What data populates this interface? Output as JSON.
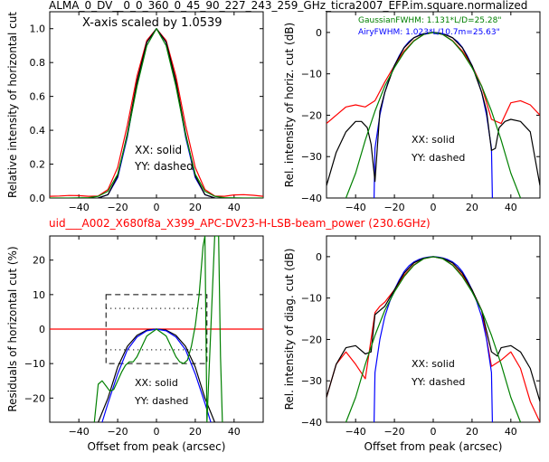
{
  "figure": {
    "title": "ALMA_0_DV__0_0_360_0_45_90_227_243_259_GHz_ticra2007_EFP.im.square.normalized",
    "subtitle": "uid___A002_X680f8a_X399_APC-DV23-H-LSB-beam_power (230.6GHz)",
    "title_color": "#000000",
    "subtitle_color": "#ff0000"
  },
  "chart_data": [
    {
      "type": "line",
      "panel": "top-left",
      "xlabel": "",
      "ylabel": "Relative intensity of horizontal cut",
      "xlim": [
        -55,
        55
      ],
      "ylim": [
        0,
        1.1
      ],
      "xticks": [
        -40,
        -20,
        0,
        20,
        40
      ],
      "xtick_labels": [
        "−40",
        "−20",
        "0",
        "20",
        "40"
      ],
      "yticks": [
        0.0,
        0.2,
        0.4,
        0.6,
        0.8,
        1.0
      ],
      "ytick_labels": [
        "0.0",
        "0.2",
        "0.4",
        "0.6",
        "0.8",
        "1.0"
      ],
      "annotation": "X-axis scaled by 1.0539",
      "legend": [
        "XX: solid",
        "YY: dashed"
      ],
      "series": [
        {
          "color": "#ff0000",
          "x": [
            -55,
            -50,
            -45,
            -40,
            -35,
            -30,
            -25,
            -20,
            -15,
            -10,
            -5,
            0,
            5,
            10,
            15,
            20,
            25,
            30,
            35,
            40,
            45,
            50,
            55
          ],
          "y": [
            0.01,
            0.012,
            0.015,
            0.014,
            0.01,
            0.012,
            0.05,
            0.18,
            0.43,
            0.72,
            0.93,
            1.0,
            0.93,
            0.72,
            0.43,
            0.18,
            0.05,
            0.012,
            0.01,
            0.018,
            0.02,
            0.016,
            0.01
          ]
        },
        {
          "color": "#0000ff",
          "x": [
            -30,
            -25,
            -20,
            -15,
            -10,
            -5,
            0,
            5,
            10,
            15,
            20,
            25,
            30
          ],
          "y": [
            0.0,
            0.02,
            0.12,
            0.36,
            0.68,
            0.92,
            1.0,
            0.92,
            0.68,
            0.36,
            0.12,
            0.02,
            0.0
          ]
        },
        {
          "color": "#000000",
          "x": [
            -30,
            -25,
            -20,
            -15,
            -10,
            -5,
            0,
            5,
            10,
            15,
            20,
            25,
            30
          ],
          "y": [
            0.0,
            0.02,
            0.13,
            0.38,
            0.69,
            0.92,
            1.0,
            0.92,
            0.69,
            0.38,
            0.13,
            0.02,
            0.0
          ]
        },
        {
          "color": "#008000",
          "x": [
            -55,
            -45,
            -35,
            -30,
            -25,
            -20,
            -15,
            -10,
            -5,
            0,
            5,
            10,
            15,
            20,
            25,
            30,
            35,
            45,
            55
          ],
          "y": [
            0.0,
            0.0,
            0.002,
            0.01,
            0.04,
            0.14,
            0.37,
            0.66,
            0.9,
            1.0,
            0.9,
            0.66,
            0.37,
            0.14,
            0.04,
            0.01,
            0.002,
            0.0,
            0.0
          ]
        }
      ]
    },
    {
      "type": "line",
      "panel": "top-right",
      "xlabel": "",
      "ylabel": "Rel. intensity of horiz. cut (dB)",
      "xlim": [
        -55,
        55
      ],
      "ylim": [
        -40,
        5
      ],
      "xticks": [
        -40,
        -20,
        0,
        20,
        40
      ],
      "xtick_labels": [
        "−40",
        "−20",
        "0",
        "20",
        "40"
      ],
      "yticks": [
        0,
        -10,
        -20,
        -30,
        -40
      ],
      "ytick_labels": [
        "0",
        "−10",
        "−20",
        "−30",
        "−40"
      ],
      "legend": [
        "XX: solid",
        "YY: dashed"
      ],
      "fwhm_labels": [
        {
          "text": "GaussianFWHM: 1.131*L/D=25.28\"",
          "color": "#008000"
        },
        {
          "text": "AiryFWHM: 1.023*L/10.7m=25.63\"",
          "color": "#0000ff"
        }
      ],
      "series": [
        {
          "color": "#ff0000",
          "x": [
            -55,
            -50,
            -45,
            -40,
            -35,
            -30,
            -25,
            -20,
            -15,
            -10,
            -5,
            0,
            5,
            10,
            15,
            20,
            25,
            30,
            35,
            40,
            45,
            50,
            55
          ],
          "y": [
            -22,
            -20,
            -18,
            -17.5,
            -18,
            -16.5,
            -12,
            -8,
            -4.5,
            -2,
            -0.5,
            0,
            -0.5,
            -2,
            -4.5,
            -8,
            -13,
            -21,
            -22,
            -17,
            -16.5,
            -17.5,
            -20
          ]
        },
        {
          "color": "#0000ff",
          "x": [
            -30.5,
            -30,
            -27.5,
            -25,
            -22.5,
            -20,
            -17.5,
            -15,
            -12.5,
            -10,
            -7.5,
            -5,
            -2.5,
            0,
            2.5,
            5,
            7.5,
            10,
            12.5,
            15,
            17.5,
            20,
            22.5,
            25,
            27.5,
            30,
            30.5
          ],
          "y": [
            -40,
            -28,
            -20,
            -14.5,
            -11,
            -8,
            -5.6,
            -3.6,
            -2.2,
            -1.3,
            -0.7,
            -0.3,
            -0.1,
            0,
            -0.1,
            -0.3,
            -0.7,
            -1.3,
            -2.2,
            -3.6,
            -5.6,
            -8,
            -11,
            -14.5,
            -20,
            -28,
            -40
          ]
        },
        {
          "color": "#000000",
          "x": [
            -55,
            -50,
            -45,
            -40,
            -37,
            -34,
            -32,
            -30,
            -27.5,
            -25,
            -20,
            -15,
            -10,
            -5,
            0,
            5,
            10,
            15,
            20,
            25,
            27.5,
            30,
            32,
            34,
            37,
            40,
            45,
            50,
            55
          ],
          "y": [
            -37,
            -29,
            -24,
            -21.5,
            -21.5,
            -23,
            -27,
            -36,
            -19,
            -14.5,
            -8,
            -3.7,
            -1.3,
            -0.3,
            0,
            -0.3,
            -1.3,
            -3.7,
            -8,
            -14.5,
            -19,
            -28.5,
            -28,
            -23,
            -21.5,
            -21,
            -21.5,
            -24,
            -37
          ]
        },
        {
          "color": "#008000",
          "x": [
            -45,
            -40,
            -35,
            -30,
            -25,
            -20,
            -15,
            -10,
            -5,
            0,
            5,
            10,
            15,
            20,
            25,
            30,
            35,
            40,
            45
          ],
          "y": [
            -40,
            -34,
            -26,
            -19,
            -13,
            -8.5,
            -4.8,
            -2.1,
            -0.5,
            0,
            -0.5,
            -2.1,
            -4.8,
            -8.5,
            -13,
            -19,
            -26,
            -34,
            -40
          ]
        }
      ]
    },
    {
      "type": "line",
      "panel": "bottom-left",
      "xlabel": "Offset from peak (arcsec)",
      "ylabel": "Residuals of horizontal cut (%)",
      "xlim": [
        -55,
        55
      ],
      "ylim": [
        -27,
        27
      ],
      "xticks": [
        -40,
        -20,
        0,
        20,
        40
      ],
      "xtick_labels": [
        "−40",
        "−20",
        "0",
        "20",
        "40"
      ],
      "yticks": [
        20,
        10,
        0,
        -10,
        -20
      ],
      "ytick_labels": [
        "20",
        "10",
        "0",
        "−10",
        "−20"
      ],
      "legend": [
        "XX: solid",
        "YY: dashed"
      ],
      "dashed_box": {
        "x": [
          -26,
          26
        ],
        "y": [
          -10,
          10
        ]
      },
      "dotted_box": {
        "x": [
          -26,
          26
        ],
        "y": [
          -6,
          6
        ]
      },
      "series": [
        {
          "color": "#ff0000",
          "x": [
            -55,
            55
          ],
          "y": [
            0,
            0
          ]
        },
        {
          "color": "#000000",
          "x": [
            -30,
            -25,
            -20,
            -15,
            -10,
            -5,
            0,
            5,
            10,
            15,
            20,
            25,
            30
          ],
          "y": [
            -27,
            -20,
            -11,
            -5,
            -1.8,
            -0.3,
            0,
            -0.3,
            -1.8,
            -5,
            -11,
            -20,
            -27
          ]
        },
        {
          "color": "#0000ff",
          "x": [
            -28,
            -25,
            -20,
            -15,
            -10,
            -5,
            0,
            5,
            10,
            15,
            20,
            25,
            28
          ],
          "y": [
            -27,
            -21.5,
            -13,
            -6,
            -2.3,
            -0.5,
            0,
            -0.5,
            -2.3,
            -6,
            -13,
            -21.5,
            -27
          ]
        },
        {
          "color": "#008000",
          "x": [
            -32,
            -30,
            -28,
            -26,
            -24,
            -22,
            -20,
            -18,
            -16,
            -14,
            -12,
            -10,
            -5,
            0,
            5,
            10,
            12,
            14,
            16,
            18,
            20,
            22,
            24,
            25,
            26,
            30,
            32,
            33,
            34
          ],
          "y": [
            -27,
            -16,
            -15,
            -16.5,
            -18,
            -17.5,
            -15,
            -12.5,
            -10.5,
            -9.5,
            -9.5,
            -8,
            -2,
            0,
            -2,
            -8,
            -9.5,
            -10,
            -9,
            -5,
            1,
            10,
            24,
            27,
            -27,
            27,
            27,
            -8,
            -27
          ]
        }
      ]
    },
    {
      "type": "line",
      "panel": "bottom-right",
      "xlabel": "Offset from peak (arcsec)",
      "ylabel": "Rel. intensity of diag. cut (dB)",
      "xlim": [
        -55,
        55
      ],
      "ylim": [
        -40,
        5
      ],
      "xticks": [
        -40,
        -20,
        0,
        20,
        40
      ],
      "xtick_labels": [
        "−40",
        "−20",
        "0",
        "20",
        "40"
      ],
      "yticks": [
        0,
        -10,
        -20,
        -30,
        -40
      ],
      "ytick_labels": [
        "0",
        "−10",
        "−20",
        "−30",
        "−40"
      ],
      "legend": [
        "XX: solid",
        "YY: dashed"
      ],
      "series": [
        {
          "color": "#ff0000",
          "x": [
            -55,
            -50,
            -45,
            -40,
            -35,
            -30,
            -27.5,
            -25,
            -20,
            -15,
            -10,
            -5,
            0,
            5,
            10,
            15,
            20,
            25,
            30,
            35,
            40,
            45,
            50,
            55
          ],
          "y": [
            -34,
            -26,
            -23,
            -26,
            -29.5,
            -13.5,
            -12,
            -11,
            -8,
            -4.5,
            -2,
            -0.5,
            0,
            -0.5,
            -2,
            -4.5,
            -8,
            -13,
            -26.5,
            -25,
            -23,
            -27,
            -35,
            -40
          ]
        },
        {
          "color": "#0000ff",
          "x": [
            -30.5,
            -30,
            -27.5,
            -25,
            -22.5,
            -20,
            -17.5,
            -15,
            -12.5,
            -10,
            -7.5,
            -5,
            -2.5,
            0,
            2.5,
            5,
            7.5,
            10,
            12.5,
            15,
            17.5,
            20,
            22.5,
            25,
            27.5,
            30,
            30.5
          ],
          "y": [
            -40,
            -28,
            -20,
            -14.5,
            -11,
            -8,
            -5.6,
            -3.6,
            -2.2,
            -1.3,
            -0.7,
            -0.3,
            -0.1,
            0,
            -0.1,
            -0.3,
            -0.7,
            -1.3,
            -2.2,
            -3.6,
            -5.6,
            -8,
            -11,
            -14.5,
            -20,
            -28,
            -40
          ]
        },
        {
          "color": "#000000",
          "x": [
            -55,
            -50,
            -45,
            -40,
            -35,
            -32,
            -30,
            -25,
            -20,
            -15,
            -10,
            -5,
            0,
            5,
            10,
            15,
            20,
            25,
            30,
            33,
            35,
            40,
            45,
            50,
            55
          ],
          "y": [
            -34,
            -26,
            -22,
            -21.5,
            -23.5,
            -23,
            -14,
            -12,
            -8,
            -4,
            -1.5,
            -0.4,
            0,
            -0.4,
            -1.5,
            -4,
            -8,
            -13,
            -23,
            -24,
            -22,
            -21.5,
            -23,
            -27,
            -35
          ]
        },
        {
          "color": "#008000",
          "x": [
            -45,
            -40,
            -35,
            -30,
            -25,
            -20,
            -15,
            -10,
            -5,
            0,
            5,
            10,
            15,
            20,
            25,
            30,
            35,
            40,
            45
          ],
          "y": [
            -40,
            -34,
            -26,
            -19,
            -13,
            -8.5,
            -4.8,
            -2.1,
            -0.5,
            0,
            -0.5,
            -2.1,
            -4.8,
            -8.5,
            -13,
            -19,
            -26,
            -34,
            -40
          ]
        }
      ]
    }
  ]
}
